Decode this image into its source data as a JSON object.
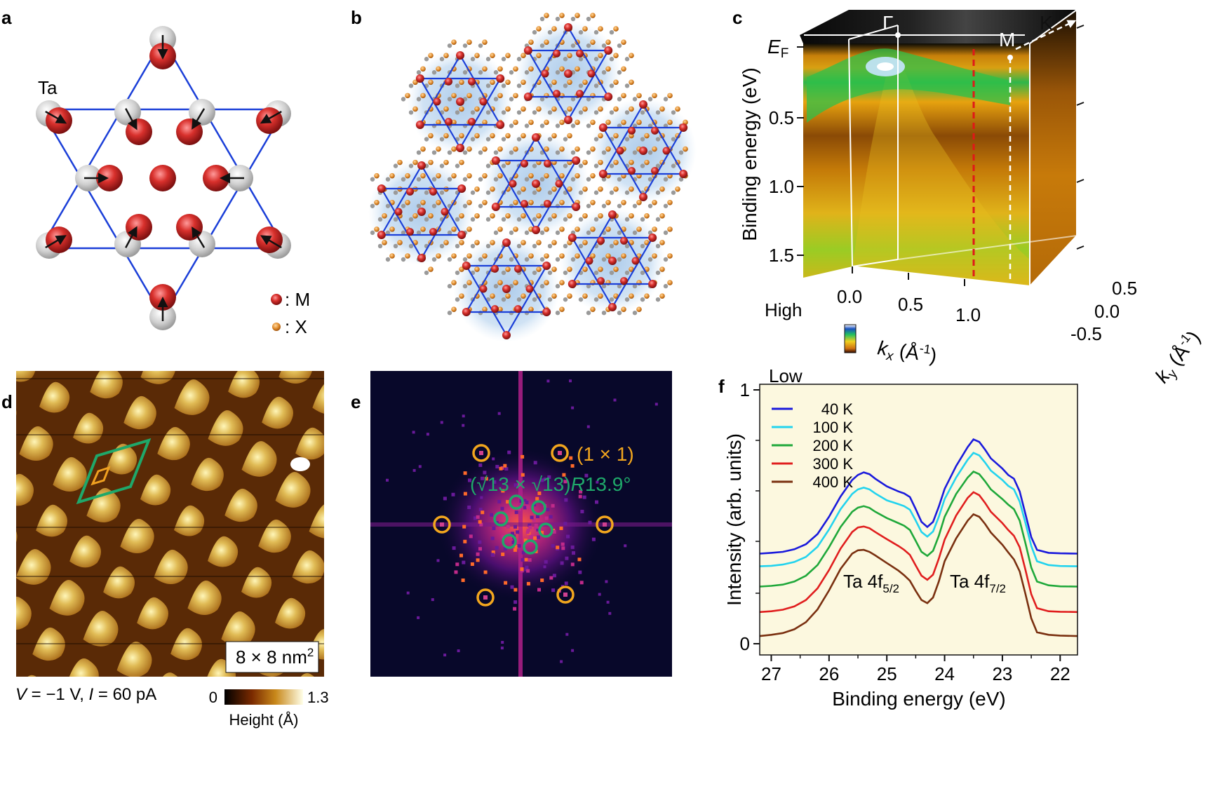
{
  "panels": {
    "a": {
      "label": "a",
      "atom_label": "Ta",
      "legend_m": ": M",
      "legend_x": ": X"
    },
    "b": {
      "label": "b"
    },
    "c": {
      "label": "c",
      "ylabel": "Binding energy (eV)",
      "ef_main": "E",
      "ef_sub": "F",
      "yticks": [
        "0.5",
        "1.0",
        "1.5"
      ],
      "gamma": "Γ",
      "m_point": "M",
      "k_point": "K",
      "colorbar_high": "High",
      "colorbar_low": "Low",
      "kx_ticks": [
        "0.0",
        "0.5",
        "1.0"
      ],
      "kx_label": "k",
      "kx_sub": "x",
      "kx_unit": " (Å",
      "ky_ticks": [
        "0.5",
        "0.0",
        "-0.5"
      ],
      "ky_label": "k",
      "ky_sub": "y",
      "ky_unit": " (Å",
      "unit_sup": "-1",
      "unit_close": ")"
    },
    "d": {
      "label": "d",
      "scale": "8 × 8 nm",
      "scale_sup": "2",
      "params_v": "V",
      "params_v_val": " = −1 V, ",
      "params_i": "I",
      "params_i_val": " = 60 pA",
      "cbar_min": "0",
      "cbar_max": "1.3",
      "cbar_label": "Height (Å)"
    },
    "e": {
      "label": "e",
      "bragg": "(1 × 1)",
      "cdw_pre": "(√13 × √13)",
      "cdw_R": "R",
      "cdw_angle": "13.9°"
    },
    "f": {
      "label": "f",
      "panel": "f"
    }
  },
  "chart_data": {
    "type": "line",
    "title": "",
    "xlabel": "Binding energy (eV)",
    "ylabel": "Intensity (arb. units)",
    "xlim": [
      27.2,
      21.7
    ],
    "ylim": [
      0,
      1
    ],
    "xticks": [
      "27",
      "26",
      "25",
      "24",
      "23",
      "22"
    ],
    "yticks": [
      "0",
      "1"
    ],
    "annotations": [
      {
        "text": "Ta 4f",
        "sub": "5/2"
      },
      {
        "text": "Ta 4f",
        "sub": "7/2"
      }
    ],
    "x": [
      27.2,
      27.0,
      26.8,
      26.6,
      26.4,
      26.2,
      26.0,
      25.8,
      25.6,
      25.5,
      25.4,
      25.3,
      25.2,
      25.0,
      24.8,
      24.7,
      24.6,
      24.5,
      24.4,
      24.3,
      24.2,
      24.1,
      24.0,
      23.8,
      23.6,
      23.5,
      23.4,
      23.3,
      23.2,
      23.0,
      22.9,
      22.8,
      22.7,
      22.6,
      22.5,
      22.4,
      22.2,
      22.0,
      21.7
    ],
    "series": [
      {
        "name": "40 K",
        "color": "#1a1adc",
        "values": [
          0.355,
          0.358,
          0.362,
          0.372,
          0.392,
          0.432,
          0.5,
          0.58,
          0.645,
          0.665,
          0.675,
          0.668,
          0.65,
          0.62,
          0.6,
          0.592,
          0.578,
          0.53,
          0.48,
          0.46,
          0.48,
          0.54,
          0.61,
          0.7,
          0.775,
          0.805,
          0.795,
          0.765,
          0.73,
          0.69,
          0.665,
          0.65,
          0.6,
          0.51,
          0.42,
          0.37,
          0.358,
          0.356,
          0.355
        ]
      },
      {
        "name": "100 K",
        "color": "#22d3ee",
        "values": [
          0.305,
          0.307,
          0.312,
          0.322,
          0.342,
          0.382,
          0.45,
          0.53,
          0.59,
          0.608,
          0.615,
          0.608,
          0.592,
          0.565,
          0.55,
          0.542,
          0.528,
          0.485,
          0.44,
          0.422,
          0.442,
          0.5,
          0.57,
          0.655,
          0.725,
          0.752,
          0.742,
          0.714,
          0.682,
          0.645,
          0.622,
          0.608,
          0.56,
          0.475,
          0.385,
          0.325,
          0.31,
          0.306,
          0.305
        ]
      },
      {
        "name": "200 K",
        "color": "#1fa83a",
        "values": [
          0.225,
          0.228,
          0.233,
          0.245,
          0.268,
          0.31,
          0.38,
          0.46,
          0.52,
          0.536,
          0.542,
          0.535,
          0.52,
          0.495,
          0.475,
          0.465,
          0.448,
          0.405,
          0.362,
          0.346,
          0.366,
          0.425,
          0.5,
          0.59,
          0.655,
          0.678,
          0.668,
          0.64,
          0.608,
          0.57,
          0.548,
          0.53,
          0.485,
          0.395,
          0.3,
          0.245,
          0.23,
          0.226,
          0.225
        ]
      },
      {
        "name": "300 K",
        "color": "#e01e1e",
        "values": [
          0.125,
          0.128,
          0.134,
          0.147,
          0.172,
          0.218,
          0.29,
          0.375,
          0.44,
          0.458,
          0.462,
          0.455,
          0.44,
          0.412,
          0.385,
          0.37,
          0.35,
          0.308,
          0.268,
          0.252,
          0.272,
          0.335,
          0.41,
          0.505,
          0.575,
          0.597,
          0.585,
          0.555,
          0.52,
          0.475,
          0.448,
          0.425,
          0.38,
          0.29,
          0.195,
          0.14,
          0.128,
          0.126,
          0.125
        ]
      },
      {
        "name": "400 K",
        "color": "#7a3010",
        "values": [
          0.03,
          0.035,
          0.042,
          0.057,
          0.085,
          0.135,
          0.21,
          0.295,
          0.355,
          0.368,
          0.37,
          0.362,
          0.348,
          0.318,
          0.288,
          0.27,
          0.248,
          0.208,
          0.172,
          0.16,
          0.182,
          0.245,
          0.325,
          0.415,
          0.485,
          0.51,
          0.5,
          0.472,
          0.438,
          0.39,
          0.36,
          0.332,
          0.285,
          0.195,
          0.1,
          0.045,
          0.035,
          0.032,
          0.03
        ]
      }
    ]
  }
}
